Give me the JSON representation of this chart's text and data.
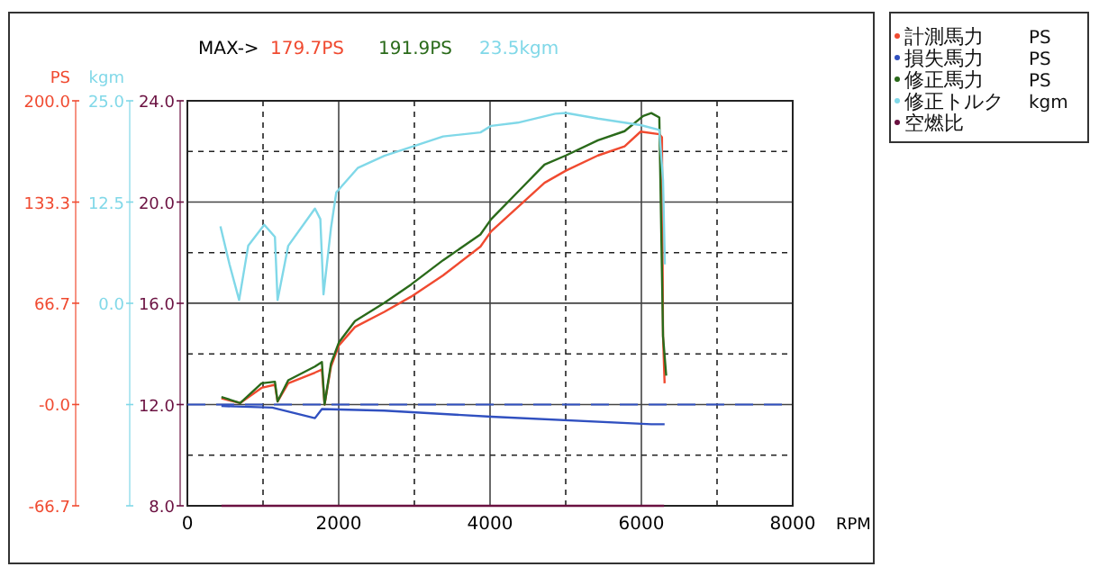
{
  "chart_data": {
    "type": "line",
    "xlabel": "RPM",
    "ylabel": "PS",
    "y2label": "kgm",
    "annotations": [
      "MAX->",
      "179.7PS",
      "191.9PS",
      "23.5kgm"
    ],
    "xlim": [
      0,
      8000
    ],
    "xticks": [
      0,
      2000,
      4000,
      6000,
      8000
    ],
    "ylim": [
      -66.7,
      200
    ],
    "yticks": [
      {
        "value": 200,
        "label": "200.0"
      },
      {
        "value": 133.3,
        "label": "133.3"
      },
      {
        "value": 66.7,
        "label": "66.7"
      },
      {
        "value": 0,
        "label": "-0.0"
      },
      {
        "value": -66.7,
        "label": "-66.7"
      }
    ],
    "y2lim": [
      -25,
      25
    ],
    "y2ticks": [
      {
        "value": 25,
        "label": "25.0"
      },
      {
        "value": 12.5,
        "label": "12.5"
      },
      {
        "value": 0,
        "label": "0.0"
      },
      {
        "value": -12.5,
        "label": null
      },
      {
        "value": -25,
        "label": null
      }
    ],
    "y3lim": [
      8,
      24
    ],
    "y3ticks": [
      {
        "value": 24,
        "label": "24.0"
      },
      {
        "value": 20,
        "label": "20.0"
      },
      {
        "value": 16,
        "label": "16.0"
      },
      {
        "value": 12,
        "label": "12.0"
      },
      {
        "value": 8,
        "label": "8.0"
      }
    ],
    "grid": true,
    "legend": "top right",
    "ref_lines": [
      {
        "axis": "y",
        "value": 0,
        "color": "#3050c0",
        "line_style": "dashed"
      }
    ],
    "series": [
      {
        "name": "計測馬力",
        "color": "#f04a30",
        "x": [
          450,
          698,
          981,
          1157,
          1192,
          1333,
          1686,
          1778,
          1813,
          1898,
          2004,
          2215,
          2603,
          2956,
          3379,
          3873,
          4014,
          4367,
          4720,
          5002,
          5426,
          5778,
          5990,
          6237,
          6272,
          6286,
          6307
        ],
        "values": [
          4,
          1,
          11,
          13,
          2,
          14,
          21,
          23,
          0,
          25,
          39,
          51,
          61,
          71,
          85,
          104,
          114,
          130,
          146,
          154,
          164,
          170,
          179.7,
          178,
          176,
          45,
          14
        ]
      },
      {
        "name": "損失馬力",
        "color": "#3050c0",
        "x": [
          450,
          1122,
          1686,
          1778,
          2603,
          4014,
          6131,
          6307
        ],
        "values": [
          -1,
          -2,
          -9,
          -3,
          -4,
          -8,
          -13,
          -13
        ]
      },
      {
        "name": "修正馬力",
        "color": "#2a6a1a",
        "x": [
          450,
          698,
          981,
          1157,
          1192,
          1333,
          1686,
          1778,
          1813,
          1898,
          2004,
          2215,
          2603,
          2956,
          3379,
          3873,
          4014,
          4367,
          4720,
          5002,
          5426,
          5778,
          6024,
          6131,
          6237,
          6286,
          6328
        ],
        "values": [
          5,
          1,
          14,
          15,
          2,
          16,
          25,
          28,
          0,
          27,
          41,
          55,
          67,
          79,
          95,
          112,
          122,
          140,
          158,
          164,
          174,
          180,
          190,
          191.9,
          189,
          45,
          19
        ]
      },
      {
        "name": "修正トルク",
        "color": "#80d8e8",
        "axis": "y2",
        "x": [
          437,
          557,
          684,
          804,
          1016,
          1157,
          1192,
          1333,
          1686,
          1757,
          1799,
          1898,
          1968,
          2251,
          2603,
          2956,
          3379,
          3873,
          4014,
          4367,
          4861,
          5002,
          5426,
          5778,
          5990,
          6237,
          6286,
          6307,
          6310
        ],
        "values": [
          9.5,
          4.8,
          0.4,
          7.1,
          9.7,
          8.2,
          0.4,
          7.1,
          11.7,
          10.4,
          1.1,
          9.3,
          13.7,
          16.7,
          18.2,
          19.3,
          20.6,
          21.1,
          21.9,
          22.3,
          23.4,
          23.5,
          22.8,
          22.3,
          22,
          21.4,
          15.2,
          6.3,
          4.8
        ]
      },
      {
        "name": "空燃比",
        "color": "#6a1040",
        "axis": "y3",
        "x": [
          450,
          6300
        ],
        "values": [
          8,
          8
        ]
      }
    ]
  }
}
